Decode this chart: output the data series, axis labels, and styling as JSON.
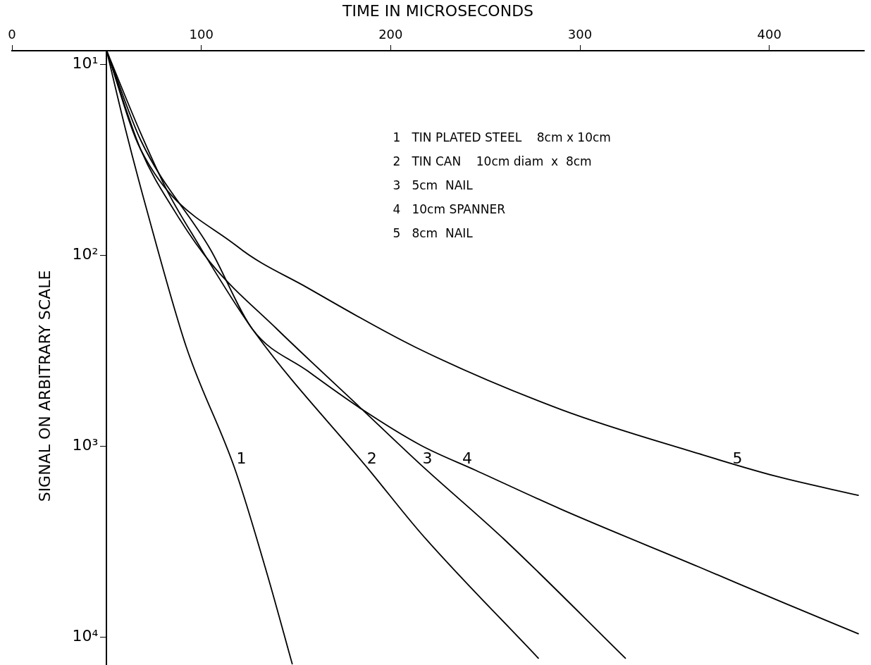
{
  "chart_data": {
    "type": "line",
    "xlabel": "TIME IN MICROSECONDS",
    "ylabel": "SIGNAL ON ARBITRARY SCALE",
    "xlim": [
      0,
      450
    ],
    "xticks": [
      0,
      100,
      200,
      300,
      400
    ],
    "ylim": [
      14000,
      8.5
    ],
    "yticks": [
      {
        "value": 10,
        "label": "10¹"
      },
      {
        "value": 100,
        "label": "10²"
      },
      {
        "value": 1000,
        "label": "10³"
      },
      {
        "value": 10000,
        "label": "10⁴"
      }
    ],
    "log": "y",
    "grid": false,
    "legend": false,
    "marker": "none",
    "line_style": "solid",
    "series": [
      {
        "name": "1",
        "color": "#000000",
        "x": [
          50,
          60,
          71,
          92,
          118,
          135,
          148
        ],
        "values": [
          8.5,
          22,
          57,
          301,
          1340,
          4760,
          13800
        ]
      },
      {
        "name": "2",
        "color": "#000000",
        "x": [
          50,
          68,
          82,
          97,
          127,
          190,
          216,
          278
        ],
        "values": [
          8.5,
          23,
          46,
          83,
          244,
          1384,
          2860,
          12900
        ]
      },
      {
        "name": "3",
        "color": "#000000",
        "x": [
          50,
          68,
          86,
          105,
          140,
          185,
          216,
          260,
          324
        ],
        "values": [
          8.5,
          28,
          59,
          110,
          244,
          643,
          1253,
          3080,
          12900
        ]
      },
      {
        "name": "4",
        "color": "#000000",
        "x": [
          50,
          68,
          105,
          127,
          156,
          185,
          216,
          245,
          290,
          363,
          408,
          447
        ],
        "values": [
          8.5,
          25,
          94,
          244,
          403,
          643,
          991,
          1340,
          2140,
          4300,
          6640,
          9600
        ]
      },
      {
        "name": "5",
        "color": "#000000",
        "x": [
          50,
          68,
          119,
          156,
          213,
          290,
          363,
          403,
          447
        ],
        "values": [
          8.5,
          28,
          90,
          148,
          303,
          643,
          1097,
          1433,
          1810
        ]
      }
    ],
    "annotations": [
      "1   TIN PLATED STEEL    8cm x 10cm",
      "2   TIN CAN    10cm diam  x  8cm",
      "3   5cm  NAIL",
      "4   10cm SPANNER",
      "5   8cm  NAIL"
    ]
  }
}
